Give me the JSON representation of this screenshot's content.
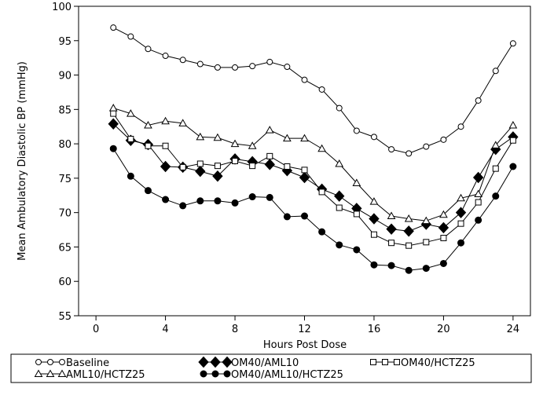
{
  "chart_data": {
    "type": "line",
    "xlabel": "Hours Post Dose",
    "ylabel": "Mean Ambulatory Diastolic BP (mmHg)",
    "xlim": [
      -1,
      25
    ],
    "ylim": [
      55,
      100
    ],
    "xticks": [
      0,
      4,
      8,
      12,
      16,
      20,
      24
    ],
    "xtick_labels": [
      "0",
      "4",
      "8",
      "12",
      "16",
      "20",
      "24"
    ],
    "yticks": [
      55,
      60,
      65,
      70,
      75,
      80,
      85,
      90,
      95,
      100
    ],
    "ytick_labels": [
      "55",
      "60",
      "65",
      "70",
      "75",
      "80",
      "85",
      "90",
      "95",
      "100"
    ],
    "x": [
      1,
      2,
      3,
      4,
      5,
      6,
      7,
      8,
      9,
      10,
      11,
      12,
      13,
      14,
      15,
      16,
      17,
      18,
      19,
      20,
      21,
      22,
      23,
      24
    ],
    "legend_position": "bottom",
    "series": [
      {
        "name": "Baseline",
        "marker": "circle-open",
        "values": [
          96.9,
          95.6,
          93.8,
          92.8,
          92.2,
          91.6,
          91.1,
          91.1,
          91.3,
          91.9,
          91.2,
          89.3,
          87.9,
          85.2,
          81.9,
          81.0,
          79.2,
          78.6,
          79.6,
          80.6,
          82.5,
          86.3,
          90.6,
          94.6
        ]
      },
      {
        "name": "OM40/AML10",
        "marker": "diamond-filled",
        "values": [
          82.9,
          80.5,
          79.9,
          76.7,
          76.6,
          76.0,
          75.3,
          77.8,
          77.4,
          77.0,
          76.1,
          75.1,
          73.4,
          72.4,
          70.6,
          69.1,
          67.6,
          67.3,
          68.3,
          67.8,
          70.0,
          75.1,
          79.2,
          81.0
        ]
      },
      {
        "name": "OM40/HCTZ25",
        "marker": "square-open",
        "values": [
          84.4,
          80.7,
          79.7,
          79.7,
          76.6,
          77.1,
          76.8,
          77.5,
          76.8,
          78.2,
          76.7,
          76.2,
          73.0,
          70.7,
          69.8,
          66.8,
          65.6,
          65.2,
          65.7,
          66.3,
          68.4,
          71.5,
          76.4,
          80.5
        ]
      },
      {
        "name": "AML10/HCTZ25",
        "marker": "triangle-open",
        "values": [
          85.2,
          84.4,
          82.7,
          83.3,
          83.0,
          81.0,
          80.9,
          80.0,
          79.7,
          82.0,
          80.8,
          80.8,
          79.3,
          77.1,
          74.3,
          71.6,
          69.5,
          69.1,
          68.8,
          69.7,
          72.1,
          72.7,
          79.8,
          82.7
        ]
      },
      {
        "name": "OM40/AML10/HCTZ25",
        "marker": "circle-filled",
        "values": [
          79.3,
          75.3,
          73.2,
          71.9,
          71.0,
          71.7,
          71.7,
          71.4,
          72.3,
          72.2,
          69.4,
          69.5,
          67.2,
          65.3,
          64.6,
          62.4,
          62.3,
          61.6,
          61.9,
          62.6,
          65.6,
          68.9,
          72.4,
          76.7
        ]
      }
    ]
  }
}
